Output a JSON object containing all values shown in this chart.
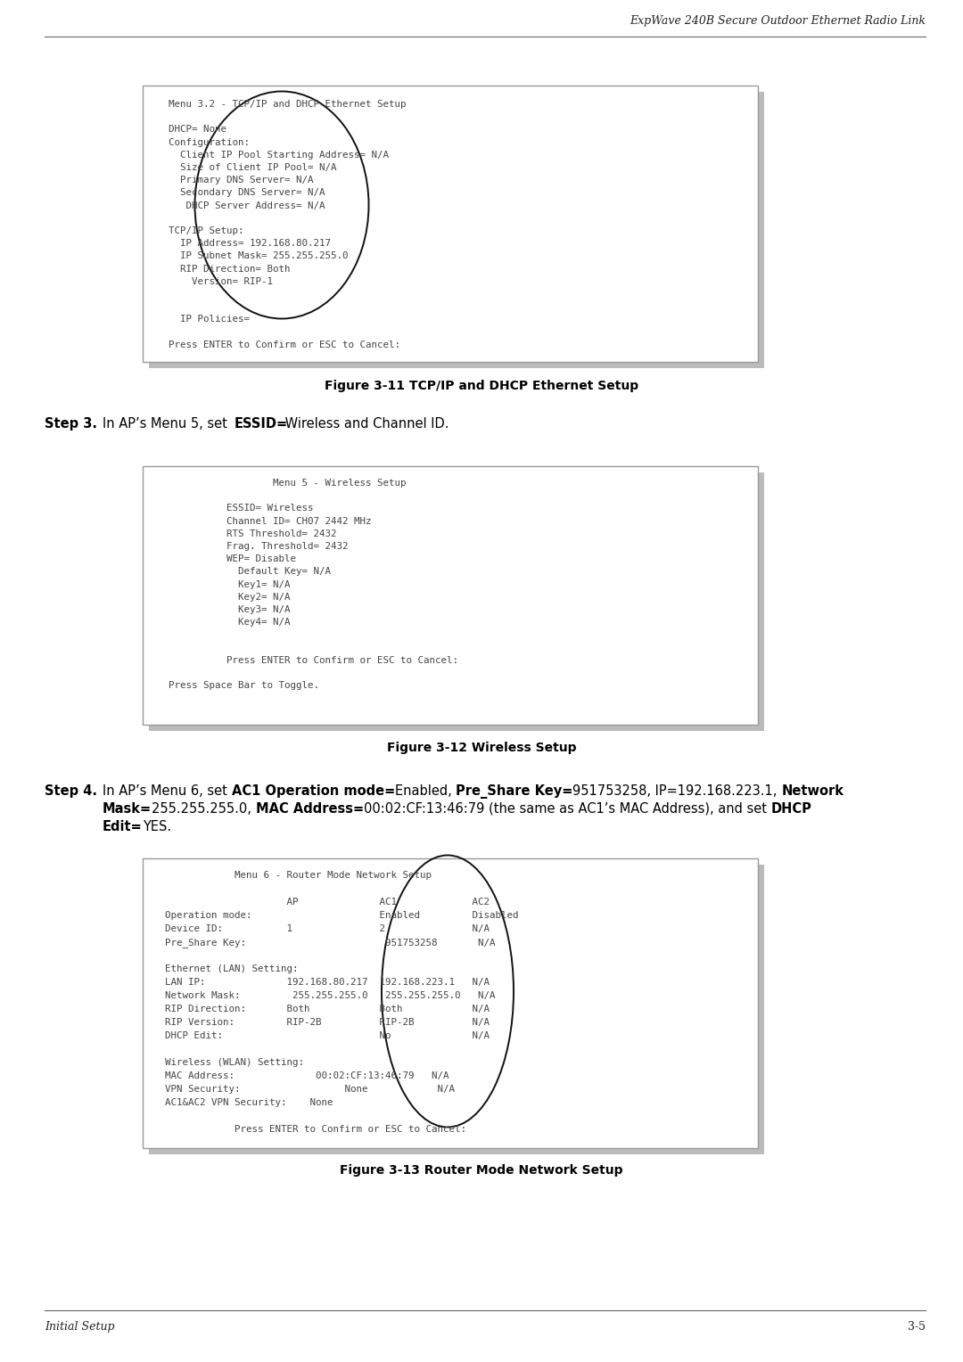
{
  "header_text": "ExpWave 240B Secure Outdoor Ethernet Radio Link",
  "footer_left": "Initial Setup",
  "footer_right": "3-5",
  "fig11_caption": "Figure 3-11 TCP/IP and DHCP Ethernet Setup",
  "fig12_caption": "Figure 3-12 Wireless Setup",
  "fig13_caption": "Figure 3-13 Router Mode Network Setup",
  "box1_content": [
    "  Menu 3.2 - TCP/IP and DHCP Ethernet Setup",
    "",
    "  DHCP= None",
    "  Configuration:",
    "    Client IP Pool Starting Address= N/A",
    "    Size of Client IP Pool= N/A",
    "    Primary DNS Server= N/A",
    "    Secondary DNS Server= N/A",
    "     DHCP Server Address= N/A",
    "",
    "  TCP/IP Setup:",
    "    IP Address= 192.168.80.217",
    "    IP Subnet Mask= 255.255.255.0",
    "    RIP Direction= Both",
    "      Version= RIP-1",
    "",
    "",
    "    IP Policies=",
    "",
    "  Press ENTER to Confirm or ESC to Cancel:"
  ],
  "box2_content": [
    "                    Menu 5 - Wireless Setup",
    "",
    "            ESSID= Wireless",
    "            Channel ID= CH07 2442 MHz",
    "            RTS Threshold= 2432",
    "            Frag. Threshold= 2432",
    "            WEP= Disable",
    "              Default Key= N/A",
    "              Key1= N/A",
    "              Key2= N/A",
    "              Key3= N/A",
    "              Key4= N/A",
    "",
    "",
    "            Press ENTER to Confirm or ESC to Cancel:",
    "",
    "  Press Space Bar to Toggle."
  ],
  "box3_content": [
    "              Menu 6 - Router Mode Network Setup",
    "",
    "                       AP              AC1             AC2",
    "  Operation mode:                      Enabled         Disabled",
    "  Device ID:           1               2               N/A",
    "  Pre_Share Key:                        951753258       N/A",
    "",
    "  Ethernet (LAN) Setting:",
    "  LAN IP:              192.168.80.217  192.168.223.1   N/A",
    "  Network Mask:         255.255.255.0   255.255.255.0   N/A",
    "  RIP Direction:       Both            Both            N/A",
    "  RIP Version:         RIP-2B          RIP-2B          N/A",
    "  DHCP Edit:                           No              N/A",
    "",
    "  Wireless (WLAN) Setting:",
    "  MAC Address:              00:02:CF:13:46:79   N/A",
    "  VPN Security:                  None            N/A",
    "  AC1&AC2 VPN Security:    None",
    "",
    "              Press ENTER to Confirm or ESC to Cancel:"
  ],
  "bg_color": "#ffffff",
  "box_bg": "#ffffff",
  "box_border": "#999999",
  "shadow_color": "#bbbbbb",
  "text_color": "#000000",
  "mono_color": "#444444"
}
